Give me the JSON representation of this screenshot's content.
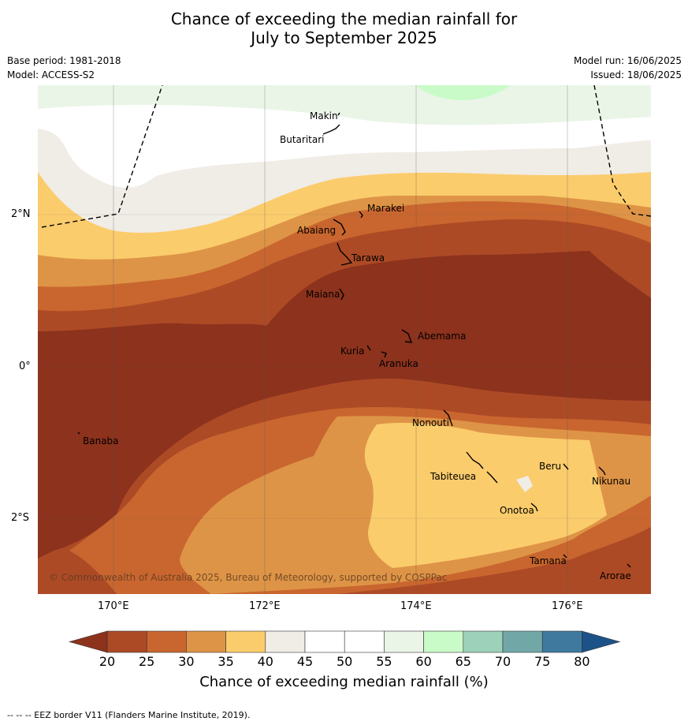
{
  "title_line1": "Chance of exceeding the median rainfall for",
  "title_line2": "July to September 2025",
  "meta_left": {
    "base_period": "Base period: 1981-2018",
    "model": "Model: ACCESS-S2"
  },
  "meta_right": {
    "model_run": "Model run: 16/06/2025",
    "issued": "Issued: 18/06/2025"
  },
  "lat_labels": [
    "2°N",
    "0°",
    "2°S"
  ],
  "lon_labels": [
    "170°E",
    "172°E",
    "174°E",
    "176°E"
  ],
  "places": [
    "Makin",
    "Butaritari",
    "Marakei",
    "Abaiang",
    "Tarawa",
    "Maiana",
    "Abemama",
    "Kuria",
    "Aranuka",
    "Nonouti",
    "Banaba",
    "Tabiteuea",
    "Beru",
    "Nikunau",
    "Onotoa",
    "Tamana",
    "Arorae"
  ],
  "copyright": "© Commonwealth of Australia 2025, Bureau of Meteorology, supported by COSPPac",
  "colorbar": {
    "ticks": [
      "20",
      "25",
      "30",
      "35",
      "40",
      "45",
      "50",
      "55",
      "60",
      "65",
      "70",
      "75",
      "80"
    ],
    "colors": [
      "#ad4a26",
      "#c9662f",
      "#de9446",
      "#fbcc6c",
      "#f0ece6",
      "#ffffff",
      "#ffffff",
      "#eaf5e8",
      "#c9fbc8",
      "#9dd1b9",
      "#72a7a8",
      "#3f7a9e"
    ],
    "under_color": "#8c321d",
    "over_color": "#1d5288",
    "label": "Chance of exceeding median rainfall (%)"
  },
  "footer": "--  --  -- EEZ border V11 (Flanders Marine Institute, 2019)."
}
